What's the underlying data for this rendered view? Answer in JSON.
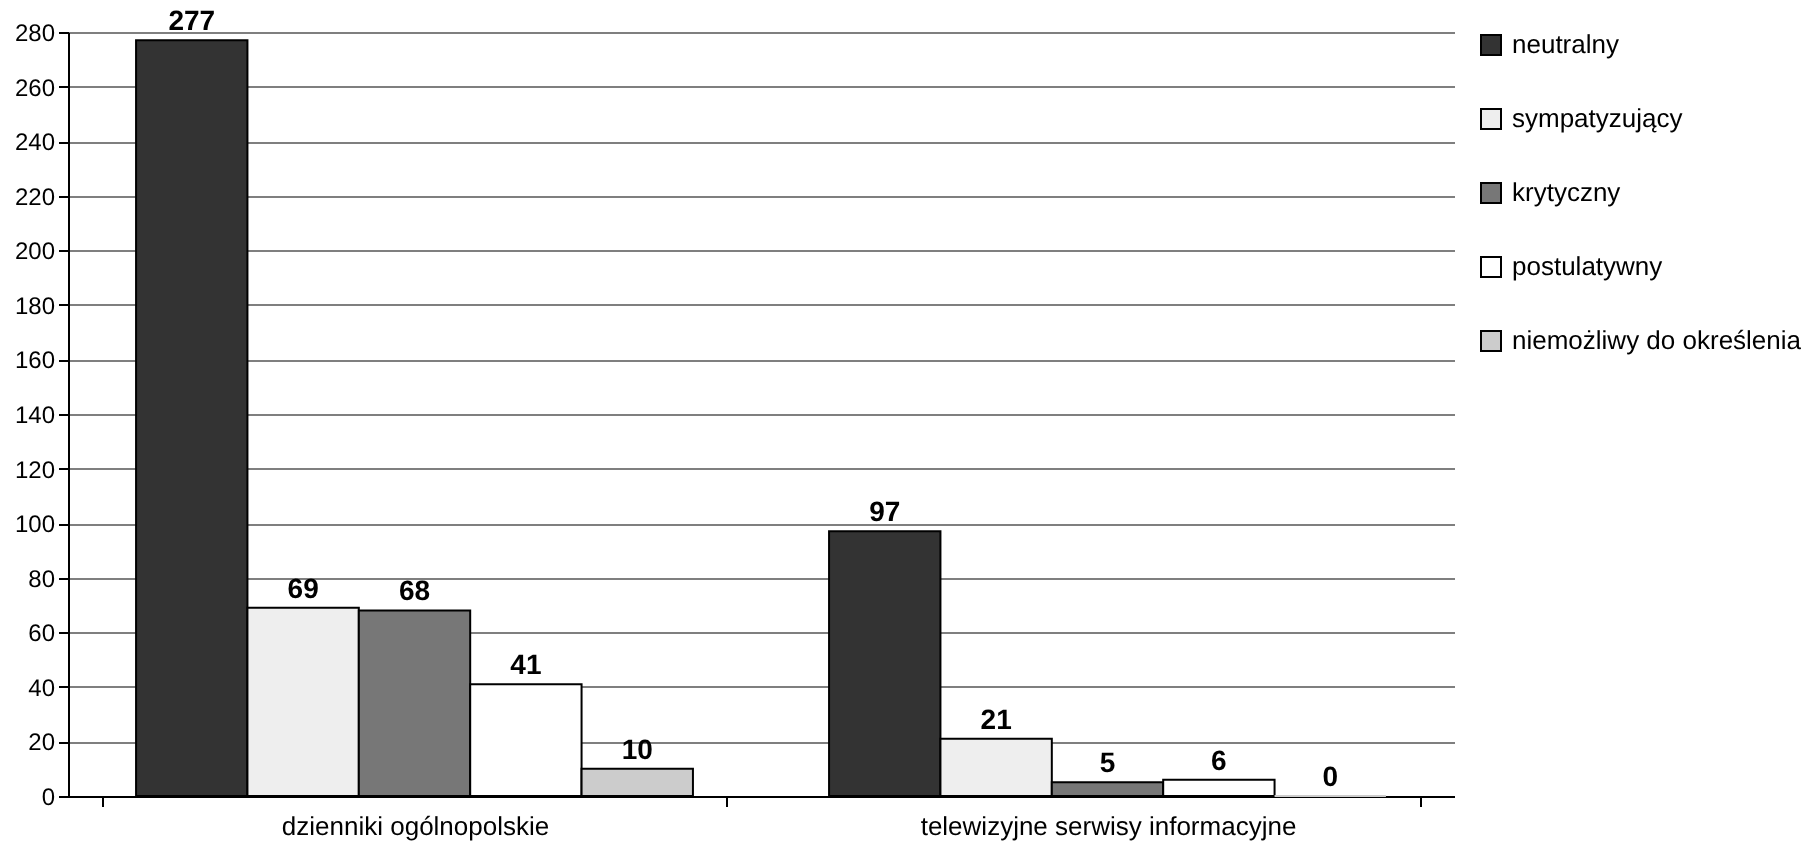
{
  "chart_data": {
    "type": "bar",
    "categories": [
      "dzienniki ogólnopolskie",
      "telewizyjne serwisy informacyjne"
    ],
    "series": [
      {
        "name": "neutralny",
        "color": "#333333",
        "values": [
          277,
          97
        ]
      },
      {
        "name": "sympatyzujący",
        "color": "#eeeeee",
        "values": [
          69,
          21
        ]
      },
      {
        "name": "krytyczny",
        "color": "#777777",
        "values": [
          68,
          5
        ]
      },
      {
        "name": "postulatywny",
        "color": "#ffffff",
        "values": [
          41,
          6
        ]
      },
      {
        "name": "niemożliwy do określenia",
        "color": "#cccccc",
        "values": [
          10,
          0
        ]
      }
    ],
    "ylim": [
      0,
      280
    ],
    "yticks": [
      0,
      20,
      40,
      60,
      80,
      100,
      120,
      140,
      160,
      180,
      200,
      220,
      240,
      260,
      280
    ],
    "grid": "y",
    "legend": "right",
    "data_labels": true
  }
}
